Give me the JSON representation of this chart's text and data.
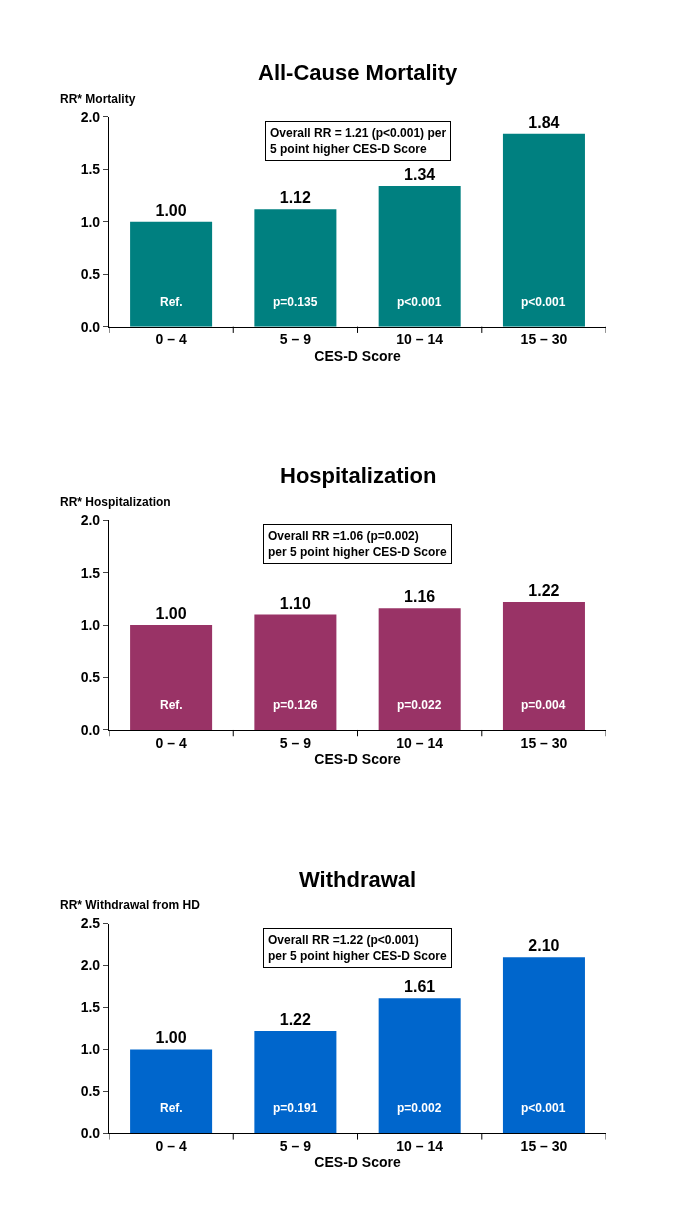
{
  "chart_data": [
    {
      "type": "bar",
      "title": "All-Cause Mortality",
      "ylabel": "RR* Mortality",
      "xlabel": "CES-D Score",
      "categories": [
        "0 – 4",
        "5 – 9",
        "10 – 14",
        "15 – 30"
      ],
      "values": [
        1.0,
        1.12,
        1.34,
        1.84
      ],
      "value_labels": [
        "1.00",
        "1.12",
        "1.34",
        "1.84"
      ],
      "color": "#008080",
      "ylim": [
        0,
        2
      ],
      "yticks": [
        {
          "value": 0,
          "label": "0.0"
        },
        {
          "value": 0.5,
          "label": "0.5"
        },
        {
          "value": 1,
          "label": "1.0"
        },
        {
          "value": 1.5,
          "label": "1.5"
        },
        {
          "value": 2,
          "label": "2.0"
        }
      ],
      "annotations": [
        "Overall RR = 1.21 (p<0.001) per\n5 point higher CES-D Score",
        "Ref.",
        "p=0.135",
        "p<0.001",
        "p<0.001"
      ]
    },
    {
      "type": "bar",
      "title": "Hospitalization",
      "ylabel": "RR* Hospitalization",
      "xlabel": "CES-D Score",
      "categories": [
        "0 – 4",
        "5 – 9",
        "10 – 14",
        "15 – 30"
      ],
      "values": [
        1.0,
        1.1,
        1.16,
        1.22
      ],
      "value_labels": [
        "1.00",
        "1.10",
        "1.16",
        "1.22"
      ],
      "color": "#993366",
      "ylim": [
        0,
        2
      ],
      "yticks": [
        {
          "value": 0,
          "label": "0.0"
        },
        {
          "value": 0.5,
          "label": "0.5"
        },
        {
          "value": 1,
          "label": "1.0"
        },
        {
          "value": 1.5,
          "label": "1.5"
        },
        {
          "value": 2,
          "label": "2.0"
        }
      ],
      "annotations": [
        "Overall RR =1.06 (p=0.002)\nper 5 point higher CES-D Score",
        "Ref.",
        "p=0.126",
        "p=0.022",
        "p=0.004"
      ]
    },
    {
      "type": "bar",
      "title": "Withdrawal",
      "ylabel": "RR* Withdrawal from HD",
      "xlabel": "CES-D Score",
      "categories": [
        "0 – 4",
        "5 – 9",
        "10 – 14",
        "15 – 30"
      ],
      "values": [
        1.0,
        1.22,
        1.61,
        2.1
      ],
      "value_labels": [
        "1.00",
        "1.22",
        "1.61",
        "2.10"
      ],
      "color": "#0066cc",
      "ylim": [
        0,
        2.5
      ],
      "yticks": [
        {
          "value": 0,
          "label": "0.0"
        },
        {
          "value": 0.5,
          "label": "0.5"
        },
        {
          "value": 1,
          "label": "1.0"
        },
        {
          "value": 1.5,
          "label": "1.5"
        },
        {
          "value": 2,
          "label": "2.0"
        },
        {
          "value": 2.5,
          "label": "2.5"
        }
      ],
      "annotations": [
        "Overall RR =1.22 (p<0.001)\nper 5 point higher CES-D Score",
        "Ref.",
        "p=0.191",
        "p=0.002",
        "p<0.001"
      ]
    }
  ]
}
